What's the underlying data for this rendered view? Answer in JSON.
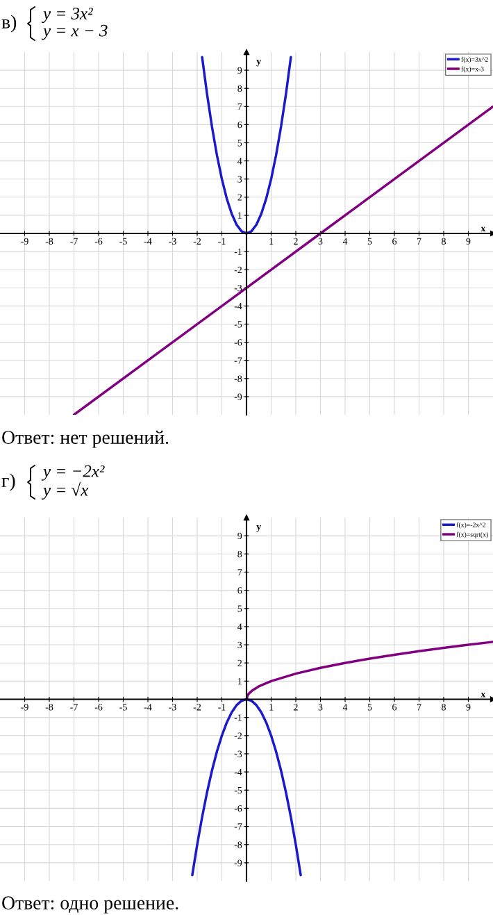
{
  "chart_data": [
    {
      "type": "line",
      "title": "в)",
      "subtitle": "y = 3x²\ny = x − 3",
      "xlabel": "x",
      "ylabel": "y",
      "xlim": [
        -10,
        10
      ],
      "ylim": [
        -10,
        10
      ],
      "xticks": [
        -9,
        -8,
        -7,
        -6,
        -5,
        -4,
        -3,
        -2,
        -1,
        1,
        2,
        3,
        4,
        5,
        6,
        7,
        8,
        9
      ],
      "yticks": [
        -9,
        -8,
        -7,
        -6,
        -5,
        -4,
        -3,
        -2,
        -1,
        1,
        2,
        3,
        4,
        5,
        6,
        7,
        8,
        9
      ],
      "grid": true,
      "legend": "top right",
      "marker": "none",
      "line_style": "solid",
      "series": [
        {
          "name": "f(x)=3x^2",
          "color": "#1a1acc",
          "x": [
            -1.8,
            -1.6,
            -1.4,
            -1.2,
            -1.0,
            -0.8,
            -0.6,
            -0.4,
            -0.2,
            0,
            0.2,
            0.4,
            0.6,
            0.8,
            1.0,
            1.2,
            1.4,
            1.6,
            1.8
          ],
          "values": [
            9.72,
            7.68,
            5.88,
            4.32,
            3.0,
            1.92,
            1.08,
            0.48,
            0.12,
            0,
            0.12,
            0.48,
            1.08,
            1.92,
            3.0,
            4.32,
            5.88,
            7.68,
            9.72
          ]
        },
        {
          "name": "f(x)=x-3",
          "color": "#800080",
          "x": [
            -7,
            0,
            3,
            10
          ],
          "values": [
            -10,
            -3,
            0,
            7
          ]
        }
      ],
      "annotations": [
        "Ответ: нет решений."
      ]
    },
    {
      "type": "line",
      "title": "г)",
      "subtitle": "y = −2x²\ny = √x",
      "xlabel": "x",
      "ylabel": "y",
      "xlim": [
        -10,
        10
      ],
      "ylim": [
        -10,
        10
      ],
      "xticks": [
        -9,
        -8,
        -7,
        -6,
        -5,
        -4,
        -3,
        -2,
        -1,
        1,
        2,
        3,
        4,
        5,
        6,
        7,
        8,
        9
      ],
      "yticks": [
        -9,
        -8,
        -7,
        -6,
        -5,
        -4,
        -3,
        -2,
        -1,
        1,
        2,
        3,
        4,
        5,
        6,
        7,
        8,
        9
      ],
      "grid": true,
      "legend": "top right",
      "marker": "none",
      "line_style": "solid",
      "series": [
        {
          "name": "f(x)=-2x^2",
          "color": "#1a1acc",
          "x": [
            -2.2,
            -2.0,
            -1.8,
            -1.6,
            -1.4,
            -1.2,
            -1.0,
            -0.8,
            -0.6,
            -0.4,
            -0.2,
            0,
            0.2,
            0.4,
            0.6,
            0.8,
            1.0,
            1.2,
            1.4,
            1.6,
            1.8,
            2.0,
            2.2
          ],
          "values": [
            -9.68,
            -8,
            -6.48,
            -5.12,
            -3.92,
            -2.88,
            -2,
            -1.28,
            -0.72,
            -0.32,
            -0.08,
            0,
            -0.08,
            -0.32,
            -0.72,
            -1.28,
            -2,
            -2.88,
            -3.92,
            -5.12,
            -6.48,
            -8,
            -9.68
          ]
        },
        {
          "name": "f(x)=sqrt(x)",
          "color": "#800080",
          "x": [
            0,
            0.05,
            0.1,
            0.25,
            0.5,
            1,
            2,
            3,
            4,
            5,
            6,
            7,
            8,
            9,
            10
          ],
          "values": [
            0,
            0.22,
            0.32,
            0.5,
            0.71,
            1,
            1.41,
            1.73,
            2,
            2.24,
            2.45,
            2.65,
            2.83,
            3,
            3.16
          ]
        }
      ],
      "annotations": [
        "Ответ: одно решение."
      ]
    }
  ]
}
